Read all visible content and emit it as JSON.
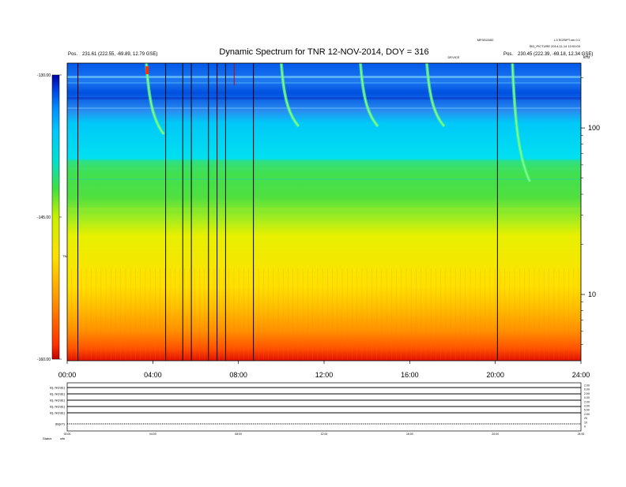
{
  "header": {
    "title": "Dynamic Spectrum for TNR 12-NOV-2014, DOY = 316",
    "left_pos_label": "Pos.",
    "left_pos_value": "231.61 (222.55, -69.89, 12.79 GSE)",
    "right_pos_label": "Pos.",
    "right_pos_value": "230.45 (222.39, -69.18, 12.34 GSE)",
    "right_top": "L3 SCRIPT.ver.0.1",
    "right_mid": "SID_PICTURE 2014-11-14 10:00:03",
    "center_tag": "MFSD2A00",
    "sub_tag": "DEVICE",
    "khz_label": "kHz"
  },
  "chart_data": {
    "type": "heatmap",
    "title": "Dynamic Spectrum for TNR 12-NOV-2014, DOY = 316",
    "x_ticks": [
      "00:00",
      "04:00",
      "08:00",
      "12:00",
      "16:00",
      "20:00",
      "24:00"
    ],
    "x_range_hours": [
      0,
      24
    ],
    "y_right_ticks": [
      {
        "value": 100,
        "label": "100"
      },
      {
        "value": 10,
        "label": "10"
      }
    ],
    "y_scale": "log",
    "y_range_khz": [
      4,
      245
    ],
    "colorbar": {
      "ticks": [
        "-130.00",
        "-145.00",
        "-160.00"
      ],
      "label": "TNR",
      "range": [
        -160,
        -130
      ],
      "colors": [
        "#c00000",
        "#ff4000",
        "#ff9000",
        "#ffe000",
        "#c8f000",
        "#50e050",
        "#00e0e0",
        "#00c8ff",
        "#0090ff",
        "#0040e0",
        "#0000a0"
      ]
    },
    "dropout_lines_hours": [
      0.5,
      4.6,
      5.4,
      5.8,
      6.6,
      7.0,
      7.4,
      8.7,
      20.1
    ],
    "red_line_hours": 7.8,
    "type_iii_bursts_hours": [
      3.7,
      10.0,
      13.7,
      16.8,
      20.8
    ]
  },
  "lower_panel": {
    "rows": [
      "B(, NGSE)",
      "B(, NGSE)",
      "B(, NGSE)",
      "B(, NGSE)",
      "B(, NGSE)",
      "|B|(nT)"
    ],
    "right_values": [
      "2.00",
      "0.00",
      "2.00",
      "0.00",
      "2.00",
      "0.00",
      "5.00",
      "2.50",
      "20",
      "10",
      "0"
    ],
    "x_ticks": [
      "00:00",
      "04:00",
      "08:00",
      "12:00",
      "16:00",
      "20:00",
      "24:00"
    ],
    "status_label": "Status",
    "status_value": "wfs"
  }
}
